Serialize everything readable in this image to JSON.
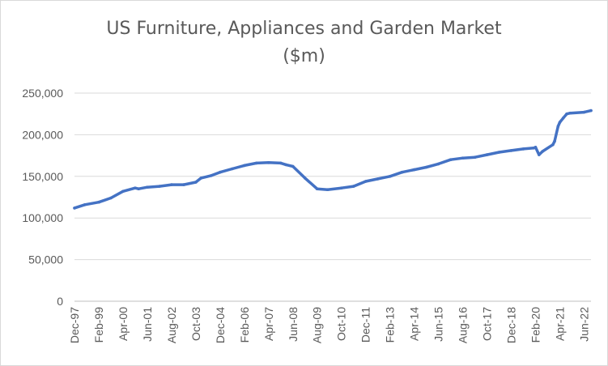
{
  "chart_data": {
    "type": "line",
    "title_line1": "US Furniture, Appliances and Garden Market",
    "title_line2": "($m)",
    "xlabel": "",
    "ylabel": "",
    "ylim": [
      0,
      250000
    ],
    "grid": true,
    "legend": "none",
    "line_color": "#4472C4",
    "y_ticks": [
      "0",
      "50,000",
      "100,000",
      "150,000",
      "200,000",
      "250,000"
    ],
    "x_ticks": [
      "Dec-97",
      "Feb-99",
      "Apr-00",
      "Jun-01",
      "Aug-02",
      "Oct-03",
      "Dec-04",
      "Feb-06",
      "Apr-07",
      "Jun-08",
      "Aug-09",
      "Oct-10",
      "Dec-11",
      "Feb-13",
      "Apr-14",
      "Jun-15",
      "Aug-16",
      "Oct-17",
      "Dec-18",
      "Feb-20",
      "Apr-21",
      "Jun-22"
    ],
    "series": [
      {
        "x": [
          "Dec-97",
          "Jun-98",
          "Feb-99",
          "Sep-99",
          "Apr-00",
          "Nov-00",
          "Jan-01",
          "Jun-01",
          "Jan-02",
          "Aug-02",
          "Mar-03",
          "Oct-03",
          "Jan-04",
          "Jul-04",
          "Dec-04",
          "Jul-05",
          "Feb-06",
          "Sep-06",
          "Apr-07",
          "Nov-07",
          "Feb-08",
          "Jun-08",
          "Jan-09",
          "Aug-09",
          "Feb-10",
          "Oct-10",
          "May-11",
          "Dec-11",
          "Jul-12",
          "Feb-13",
          "Sep-13",
          "Apr-14",
          "Nov-14",
          "Jun-15",
          "Jan-16",
          "Aug-16",
          "Mar-17",
          "Oct-17",
          "May-18",
          "Dec-18",
          "Jul-19",
          "Jan-20",
          "Feb-20",
          "Apr-20",
          "Jun-20",
          "Dec-20",
          "Jan-21",
          "Mar-21",
          "Apr-21",
          "Jun-21",
          "Aug-21",
          "Oct-21",
          "Jun-22",
          "Oct-22"
        ],
        "values": [
          112000,
          116000,
          119000,
          124000,
          132000,
          136000,
          135000,
          137000,
          138000,
          140000,
          140000,
          143000,
          148000,
          151000,
          155000,
          159000,
          163000,
          166000,
          166500,
          166000,
          164000,
          162000,
          148000,
          135000,
          134000,
          136000,
          138000,
          144000,
          147000,
          150000,
          155000,
          158000,
          161000,
          165000,
          170000,
          172000,
          173000,
          176000,
          179000,
          181000,
          183000,
          184000,
          185000,
          176000,
          180000,
          188000,
          192000,
          210000,
          215000,
          220000,
          225000,
          226000,
          227000,
          229000
        ]
      }
    ]
  }
}
